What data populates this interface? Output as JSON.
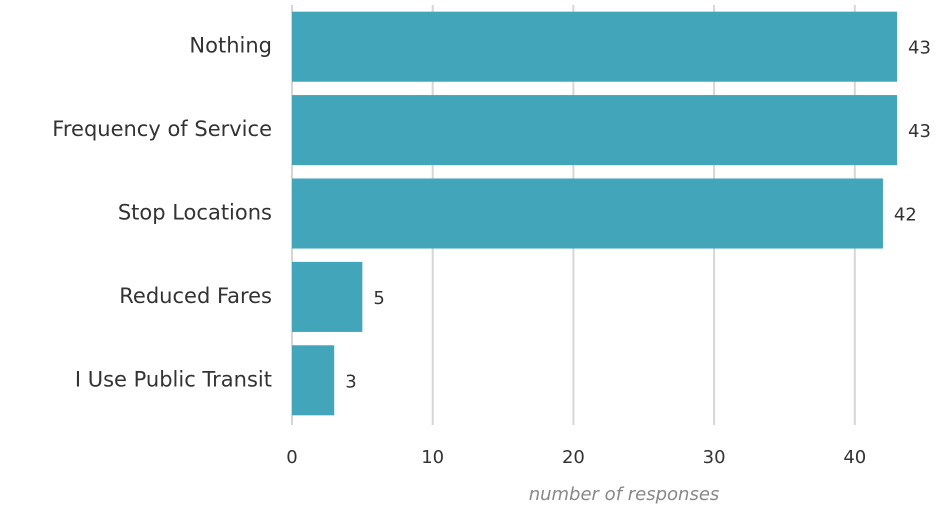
{
  "chart_data": {
    "type": "barh",
    "categories": [
      "Nothing",
      "Frequency of Service",
      "Stop Locations",
      "Reduced Fares",
      "I Use Public Transit"
    ],
    "values": [
      43,
      43,
      42,
      5,
      3
    ],
    "color": "#42a5ba",
    "xlabel": "number of responses",
    "xlim": [
      0,
      43
    ],
    "xticks": [
      0,
      10,
      20,
      30,
      40
    ],
    "grid": true
  }
}
